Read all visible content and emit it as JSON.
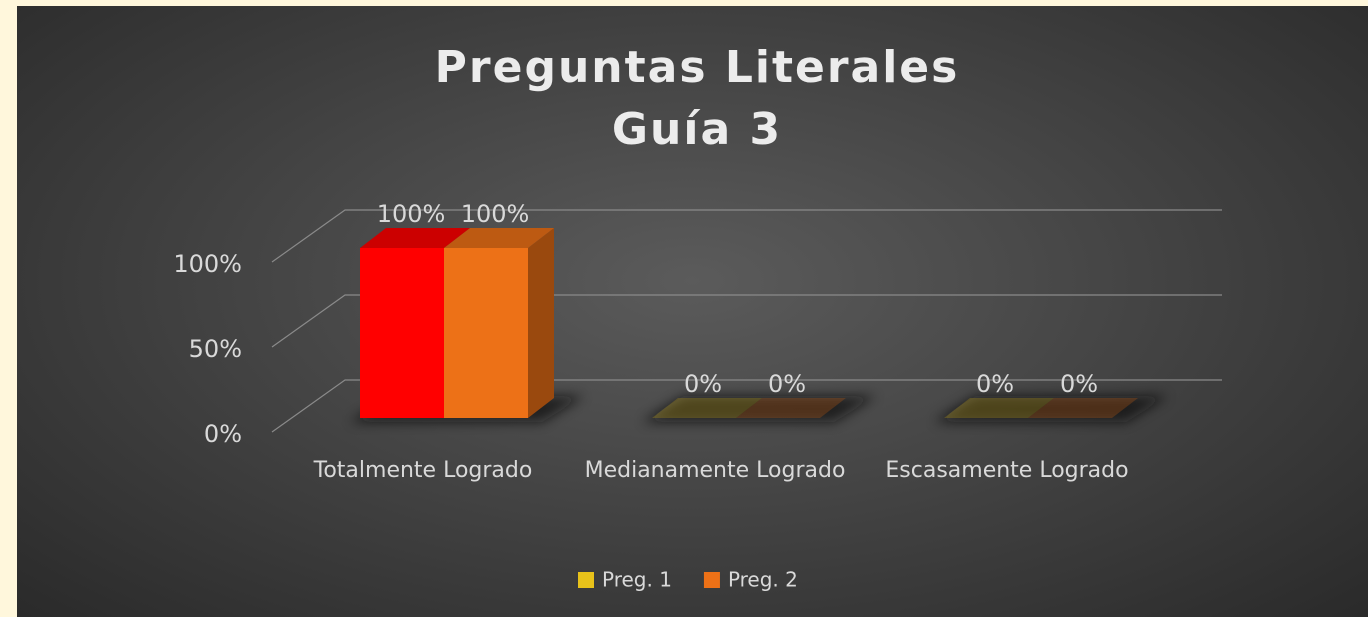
{
  "chart_data": {
    "type": "bar3d",
    "title": [
      "Preguntas Literales",
      "Guía 3"
    ],
    "categories": [
      "Totalmente Logrado",
      "Medianamente Logrado",
      "Escasamente Logrado"
    ],
    "series": [
      {
        "name": "Preg. 1",
        "color": "#e8c21a",
        "colors": [
          "#ff0000",
          "#e8c21a",
          "#e8c21a"
        ],
        "values": [
          100,
          0,
          0
        ],
        "value_labels": [
          "100%",
          "0%",
          "0%"
        ]
      },
      {
        "name": "Preg. 2",
        "color": "#ed7117",
        "colors": [
          "#ed7117",
          "#ed7117",
          "#ed7117"
        ],
        "values": [
          100,
          0,
          0
        ],
        "value_labels": [
          "100%",
          "0%",
          "0%"
        ]
      }
    ],
    "ylim": [
      0,
      100
    ],
    "yticks": [
      {
        "value": 0,
        "label": "0%"
      },
      {
        "value": 50,
        "label": "50%"
      },
      {
        "value": 100,
        "label": "100%"
      }
    ],
    "grid": true,
    "legend": "bottom"
  }
}
